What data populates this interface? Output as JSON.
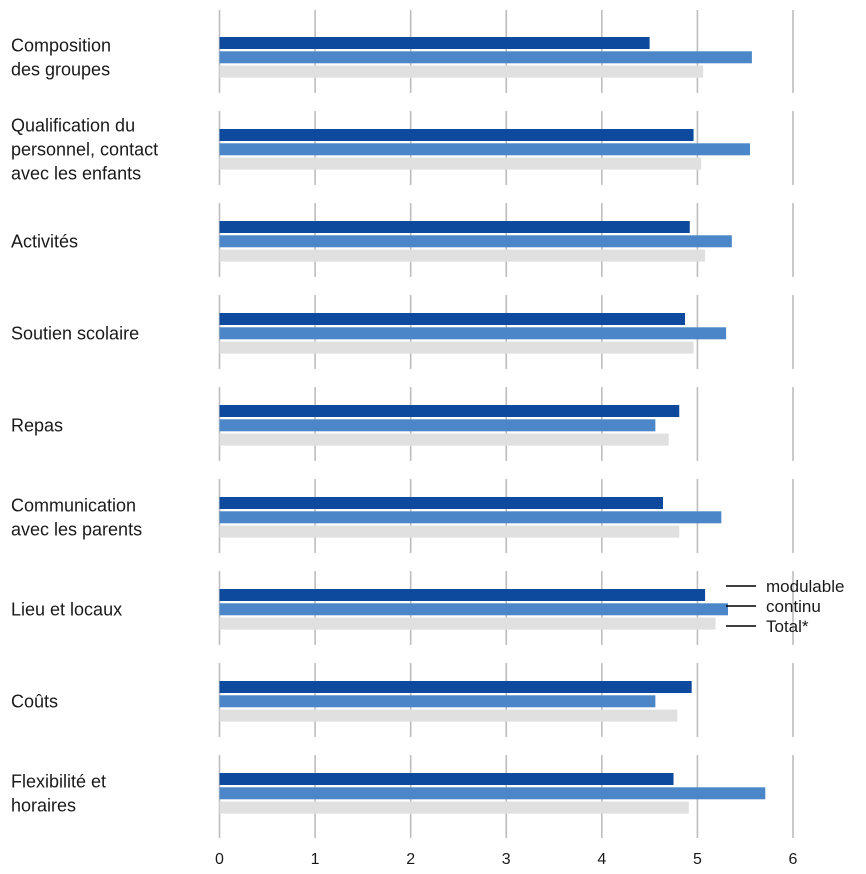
{
  "chart_data": {
    "type": "bar",
    "orientation": "horizontal",
    "categories": [
      [
        "Composition",
        "des groupes"
      ],
      [
        "Qualification du",
        "personnel, contact",
        "avec les enfants"
      ],
      [
        "Activités"
      ],
      [
        "Soutien scolaire"
      ],
      [
        "Repas"
      ],
      [
        "Communication",
        "avec les parents"
      ],
      [
        "Lieu et locaux"
      ],
      [
        "Coûts"
      ],
      [
        "Flexibilité et",
        "horaires"
      ]
    ],
    "series": [
      {
        "name": "modulable",
        "color": "#0d4a9e",
        "values": [
          4.5,
          4.96,
          4.92,
          4.87,
          4.81,
          4.64,
          5.08,
          4.94,
          4.75
        ]
      },
      {
        "name": "continu",
        "color": "#4a86c8",
        "values": [
          5.57,
          5.55,
          5.36,
          5.3,
          4.56,
          5.25,
          5.32,
          4.56,
          5.71
        ]
      },
      {
        "name": "Total*",
        "color": "#e0e0e0",
        "values": [
          5.06,
          5.04,
          5.08,
          4.96,
          4.7,
          4.81,
          5.19,
          4.79,
          4.91
        ]
      }
    ],
    "xlim": [
      0,
      6
    ],
    "xticks": [
      0,
      1,
      2,
      3,
      4,
      5,
      6
    ],
    "grid": true,
    "legend_position": "right"
  }
}
